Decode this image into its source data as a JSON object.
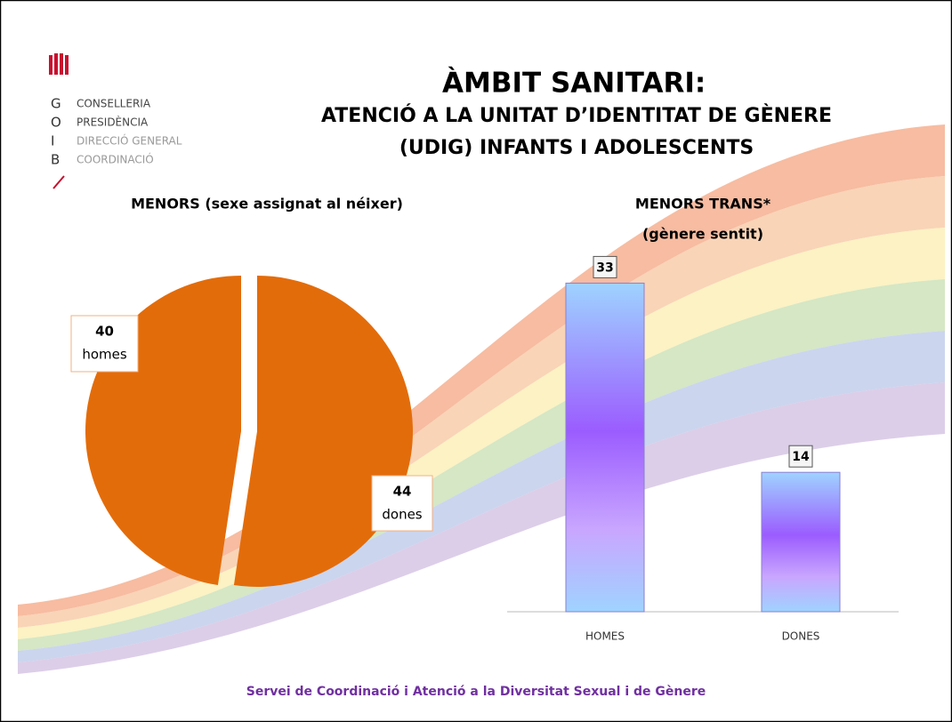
{
  "logo": {
    "letters": [
      "G",
      "O",
      "I",
      "B"
    ],
    "lines": [
      "CONSELLERIA",
      "PRESIDÈNCIA",
      "DIRECCIÓ GENERAL",
      "COORDINACIÓ"
    ]
  },
  "title": "ÀMBIT SANITARI:",
  "subtitle_lines": [
    "ATENCIÓ A LA UNITAT D’IDENTITAT DE GÈNERE",
    "(UDIG) INFANTS I ADOLESCENTS"
  ],
  "chart_data": [
    {
      "type": "pie",
      "title": "MENORS (sexe assignat al néixer)",
      "categories": [
        "homes",
        "dones"
      ],
      "values": [
        40,
        44
      ],
      "color": "#e36c0a"
    },
    {
      "type": "bar",
      "title_lines": [
        "MENORS TRANS*",
        "(gènere sentit)"
      ],
      "categories": [
        "HOMES",
        "DONES"
      ],
      "values": [
        33,
        14
      ],
      "ylim": [
        0,
        35
      ]
    }
  ],
  "footer": "Servei de Coordinació i Atenció a la Diversitat Sexual i de Gènere"
}
